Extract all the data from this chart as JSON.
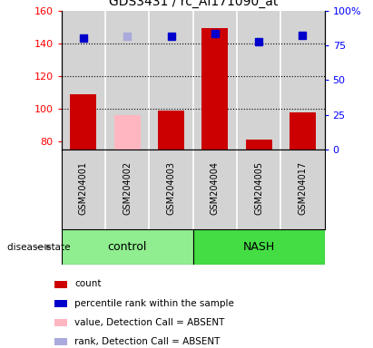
{
  "title": "GDS3431 / rc_AI171090_at",
  "samples": [
    "GSM204001",
    "GSM204002",
    "GSM204003",
    "GSM204004",
    "GSM204005",
    "GSM204017"
  ],
  "groups": [
    "control",
    "control",
    "control",
    "NASH",
    "NASH",
    "NASH"
  ],
  "group_labels": [
    "control",
    "NASH"
  ],
  "group_colors": {
    "control": "#90EE90",
    "NASH": "#44DD44"
  },
  "ylim_left": [
    75,
    160
  ],
  "ylim_right": [
    0,
    100
  ],
  "yticks_left": [
    80,
    100,
    120,
    140,
    160
  ],
  "yticks_right": [
    0,
    25,
    50,
    75,
    100
  ],
  "ytick_labels_left": [
    "80",
    "100",
    "120",
    "140",
    "160"
  ],
  "ytick_labels_right": [
    "0",
    "25",
    "50",
    "75",
    "100%"
  ],
  "bar_values": [
    109,
    96,
    99,
    149,
    81,
    98
  ],
  "bar_absent": [
    false,
    true,
    false,
    false,
    false,
    false
  ],
  "bar_color_present": "#CC0000",
  "bar_color_absent": "#FFB6C1",
  "rank_values": [
    143,
    144,
    144,
    146,
    141,
    145
  ],
  "rank_absent": [
    false,
    true,
    false,
    false,
    false,
    false
  ],
  "rank_color_present": "#0000CC",
  "rank_color_absent": "#AAAADD",
  "dotted_lines": [
    100,
    120,
    140
  ],
  "legend_items": [
    {
      "color": "#CC0000",
      "label": "count"
    },
    {
      "color": "#0000CC",
      "label": "percentile rank within the sample"
    },
    {
      "color": "#FFB6C1",
      "label": "value, Detection Call = ABSENT"
    },
    {
      "color": "#AAAADD",
      "label": "rank, Detection Call = ABSENT"
    }
  ],
  "disease_state_label": "disease state",
  "background_color": "#ffffff",
  "plot_bg_color": "#d3d3d3",
  "sample_bg_color": "#d3d3d3"
}
